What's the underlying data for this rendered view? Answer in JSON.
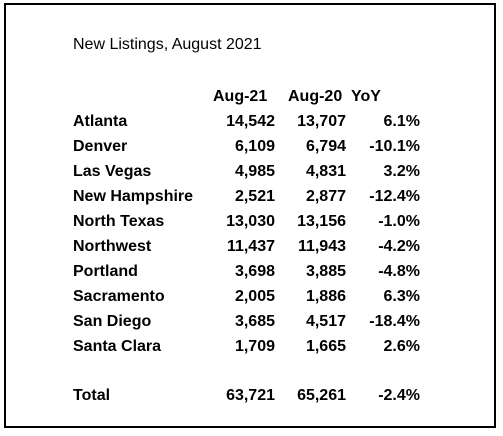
{
  "title": "New Listings, August 2021",
  "headers": {
    "aug21": "Aug-21",
    "aug20": "Aug-20",
    "yoy": "YoY"
  },
  "rows": [
    {
      "name": "Atlanta",
      "aug21": "14,542",
      "aug20": "13,707",
      "yoy": "6.1%"
    },
    {
      "name": "Denver",
      "aug21": "6,109",
      "aug20": "6,794",
      "yoy": "-10.1%"
    },
    {
      "name": "Las Vegas",
      "aug21": "4,985",
      "aug20": "4,831",
      "yoy": "3.2%"
    },
    {
      "name": "New Hampshire",
      "aug21": "2,521",
      "aug20": "2,877",
      "yoy": "-12.4%"
    },
    {
      "name": "North Texas",
      "aug21": "13,030",
      "aug20": "13,156",
      "yoy": "-1.0%"
    },
    {
      "name": "Northwest",
      "aug21": "11,437",
      "aug20": "11,943",
      "yoy": "-4.2%"
    },
    {
      "name": "Portland",
      "aug21": "3,698",
      "aug20": "3,885",
      "yoy": "-4.8%"
    },
    {
      "name": "Sacramento",
      "aug21": "2,005",
      "aug20": "1,886",
      "yoy": "6.3%"
    },
    {
      "name": "San Diego",
      "aug21": "3,685",
      "aug20": "4,517",
      "yoy": "-18.4%"
    },
    {
      "name": "Santa Clara",
      "aug21": "1,709",
      "aug20": "1,665",
      "yoy": "2.6%"
    }
  ],
  "total": {
    "name": "Total",
    "aug21": "63,721",
    "aug20": "65,261",
    "yoy": "-2.4%"
  }
}
